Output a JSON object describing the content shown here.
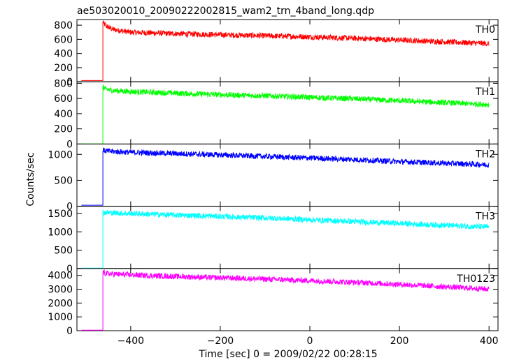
{
  "title": "ae503020010_20090222002815_wam2_trn_4band_long.qdp",
  "chart_data": {
    "type": "line",
    "title": "ae503020010_20090222002815_wam2_trn_4band_long.qdp",
    "xlabel": "Time [sec] 0 = 2009/02/22 00:28:15",
    "ylabel": "Counts/sec",
    "xlim": [
      -520,
      420
    ],
    "xticks": [
      -400,
      -200,
      0,
      200,
      400
    ],
    "grid": false,
    "legend": "none",
    "panels": [
      {
        "name": "TH0",
        "color": "#ff0000",
        "ylim": [
          0,
          880
        ],
        "yticks": [
          0,
          200,
          400,
          600,
          800
        ],
        "segments": [
          {
            "x": [
              -510,
              -462
            ],
            "y": [
              18,
              18
            ]
          },
          {
            "x": [
              -462,
              -455,
              -440,
              -400,
              -300,
              -200,
              -100,
              0,
              100,
              200,
              300,
              400
            ],
            "y": [
              840,
              790,
              740,
              700,
              680,
              665,
              650,
              635,
              615,
              590,
              565,
              540
            ]
          }
        ]
      },
      {
        "name": "TH1",
        "color": "#00ff00",
        "ylim": [
          0,
          820
        ],
        "yticks": [
          0,
          200,
          400,
          600,
          800
        ],
        "segments": [
          {
            "x": [
              -510,
              -462
            ],
            "y": [
              2,
              2
            ]
          },
          {
            "x": [
              -462,
              -455,
              -440,
              -400,
              -300,
              -200,
              -100,
              0,
              100,
              200,
              300,
              400
            ],
            "y": [
              750,
              720,
              705,
              690,
              670,
              650,
              635,
              615,
              595,
              570,
              545,
              520
            ]
          }
        ]
      },
      {
        "name": "TH2",
        "color": "#0000ff",
        "ylim": [
          0,
          1200
        ],
        "yticks": [
          0,
          500,
          1000
        ],
        "segments": [
          {
            "x": [
              -510,
              -462
            ],
            "y": [
              20,
              20
            ]
          },
          {
            "x": [
              -462,
              -455,
              -440,
              -400,
              -300,
              -200,
              -100,
              0,
              100,
              200,
              300,
              400
            ],
            "y": [
              1080,
              1065,
              1055,
              1040,
              1015,
              990,
              960,
              930,
              900,
              860,
              830,
              800
            ]
          }
        ]
      },
      {
        "name": "TH3",
        "color": "#00ffff",
        "ylim": [
          0,
          1700
        ],
        "yticks": [
          0,
          500,
          1000,
          1500
        ],
        "segments": [
          {
            "x": [
              -510,
              -462
            ],
            "y": [
              10,
              10
            ]
          },
          {
            "x": [
              -462,
              -455,
              -440,
              -400,
              -300,
              -200,
              -100,
              0,
              100,
              200,
              300,
              400
            ],
            "y": [
              1540,
              1530,
              1520,
              1500,
              1460,
              1420,
              1380,
              1330,
              1280,
              1230,
              1180,
              1130
            ]
          }
        ]
      },
      {
        "name": "TH0123",
        "color": "#ff00ff",
        "ylim": [
          0,
          4500
        ],
        "yticks": [
          0,
          1000,
          2000,
          3000,
          4000
        ],
        "segments": [
          {
            "x": [
              -510,
              -462
            ],
            "y": [
              40,
              40
            ]
          },
          {
            "x": [
              -462,
              -455,
              -440,
              -400,
              -300,
              -200,
              -100,
              0,
              100,
              200,
              300,
              400
            ],
            "y": [
              4200,
              4140,
              4100,
              4030,
              3920,
              3830,
              3730,
              3620,
              3500,
              3350,
              3180,
              3000
            ]
          }
        ]
      }
    ]
  }
}
